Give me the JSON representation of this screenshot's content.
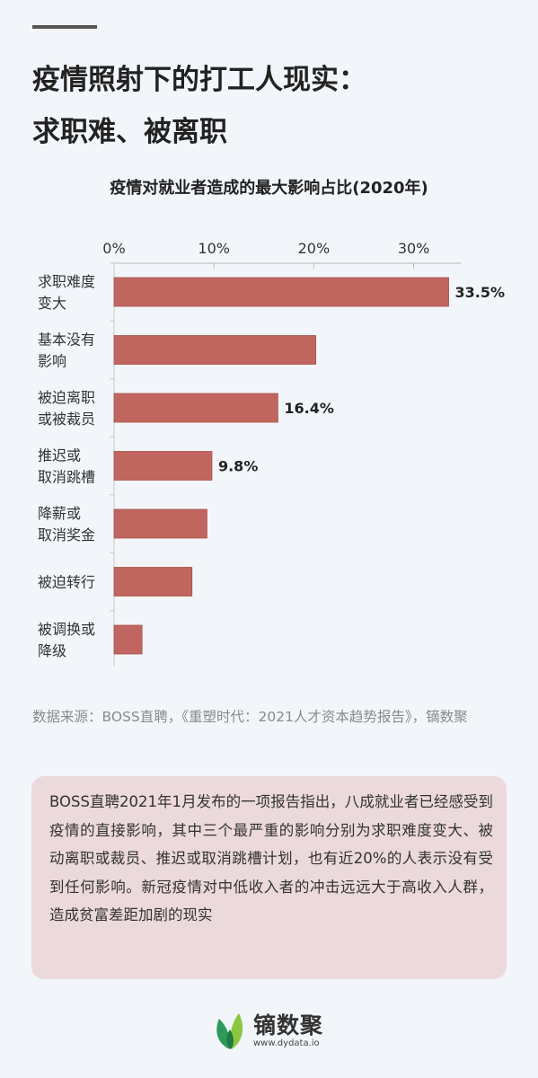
{
  "header": {
    "title_line1": "疫情照射下的打工人现实：",
    "title_line2": "求职难、被离职"
  },
  "chart_data": {
    "type": "bar",
    "orientation": "horizontal",
    "title": "疫情对就业者造成的最大影响占比(2020年)",
    "xlim": [
      0,
      35
    ],
    "ticks": [
      0,
      10,
      20,
      30
    ],
    "tick_labels": [
      "0%",
      "10%",
      "20%",
      "30%"
    ],
    "categories": [
      [
        "求职难度",
        "变大"
      ],
      [
        "基本没有",
        "影响"
      ],
      [
        "被迫离职",
        "或被裁员"
      ],
      [
        "推迟或",
        "取消跳槽"
      ],
      [
        "降薪或",
        "取消奖金"
      ],
      [
        "被迫转行"
      ],
      [
        "被调换或",
        "降级"
      ]
    ],
    "values": [
      33.5,
      20.2,
      16.4,
      9.8,
      9.3,
      7.8,
      2.8
    ],
    "data_labels": [
      "33.5%",
      "",
      "16.4%",
      "9.8%",
      "",
      "",
      ""
    ],
    "grid": false,
    "bar_color": "#c0665f"
  },
  "source": {
    "text": "数据来源：BOSS直聘，《重塑时代：2021人才资本趋势报告》，镝数聚"
  },
  "note": {
    "text": "BOSS直聘2021年1月发布的一项报告指出，八成就业者已经感受到疫情的直接影响，其中三个最严重的影响分别为求职难度变大、被动离职或裁员、推迟或取消跳槽计划，也有近20%的人表示没有受到任何影响。新冠疫情对中低收入者的冲击远远大于高收入人群，造成贫富差距加剧的现实"
  },
  "brand": {
    "name": "镝数聚",
    "url": "www.dydata.io",
    "icon": "leaf-logo-icon"
  }
}
